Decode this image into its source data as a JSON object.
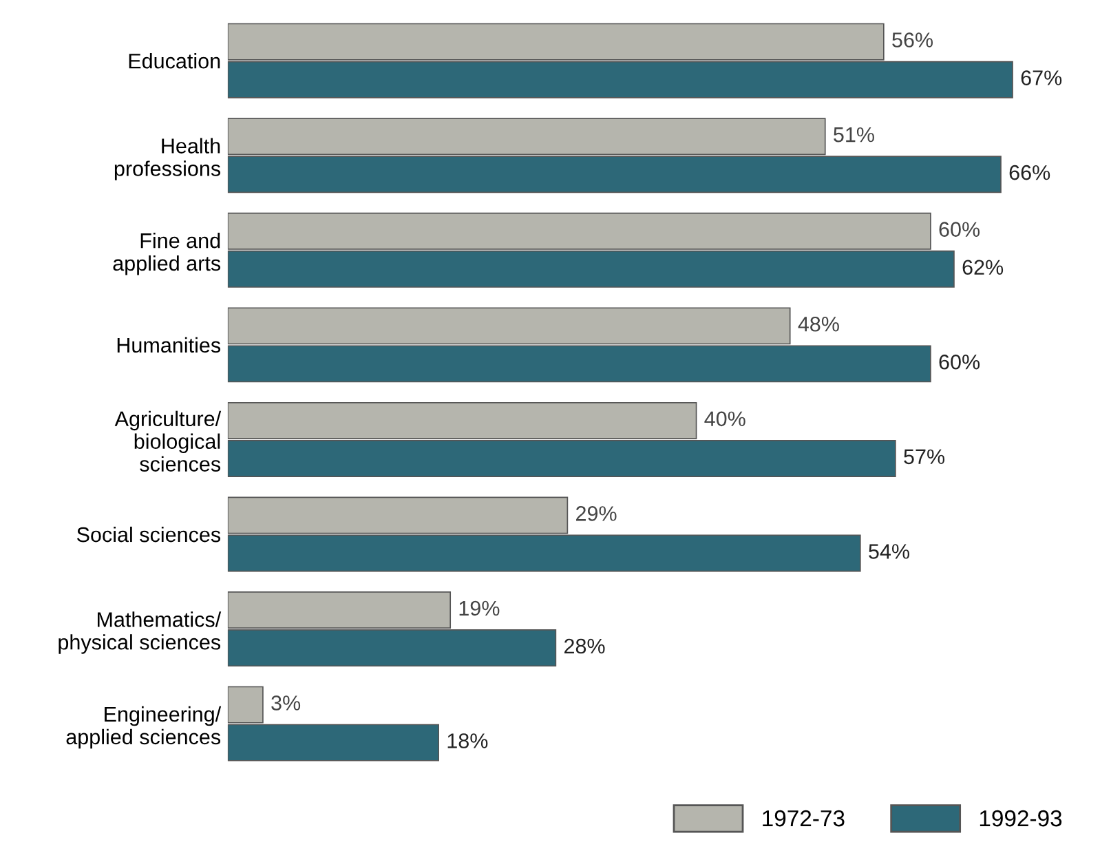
{
  "chart_data": {
    "type": "bar",
    "orientation": "horizontal",
    "categories": [
      "Education",
      "Health\nprofessions",
      "Fine and\napplied arts",
      "Humanities",
      "Agriculture/\nbiological\nsciences",
      "Social sciences",
      "Mathematics/\nphysical sciences",
      "Engineering/\napplied sciences"
    ],
    "series": [
      {
        "name": "1972-73",
        "color": "#b5b5ad",
        "values": [
          56,
          51,
          60,
          48,
          40,
          29,
          19,
          3
        ],
        "value_labels": [
          "56%",
          "51%",
          "60%",
          "48%",
          "40%",
          "29%",
          "19%",
          "3%"
        ]
      },
      {
        "name": "1992-93",
        "color": "#2d6878",
        "values": [
          67,
          66,
          62,
          60,
          57,
          54,
          28,
          18
        ],
        "value_labels": [
          "67%",
          "66%",
          "62%",
          "60%",
          "57%",
          "54%",
          "28%",
          "18%"
        ]
      }
    ],
    "legend": "bottom right",
    "grid": false
  }
}
